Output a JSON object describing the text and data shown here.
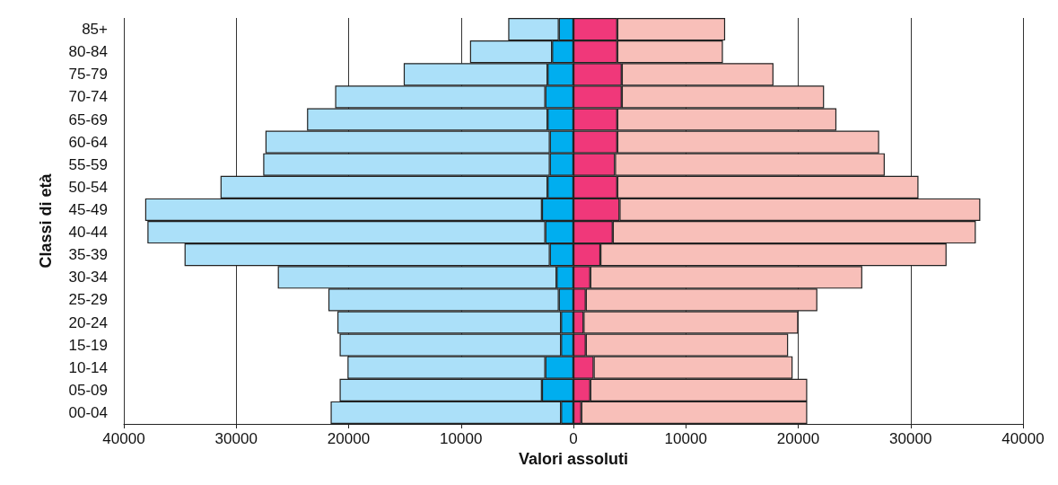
{
  "chart_data": {
    "type": "bar",
    "orientation": "horizontal",
    "stacked": true,
    "xlabel": "Valori assoluti",
    "ylabel": "Classi di età",
    "categories": [
      "85+",
      "80-84",
      "75-79",
      "70-74",
      "65-69",
      "60-64",
      "55-59",
      "50-54",
      "45-49",
      "40-44",
      "35-39",
      "30-34",
      "25-29",
      "20-24",
      "15-19",
      "10-14",
      "05-09",
      "00-04"
    ],
    "series": [
      {
        "color": "#00aeef",
        "values": [
          -1300,
          -1900,
          -2300,
          -2500,
          -2300,
          -2100,
          -2100,
          -2300,
          -2800,
          -2500,
          -2100,
          -1500,
          -1300,
          -1100,
          -1100,
          -2500,
          -2800,
          -1100
        ]
      },
      {
        "color": "#abe0f9",
        "values": [
          -4500,
          -7300,
          -12800,
          -18700,
          -21400,
          -25300,
          -25500,
          -29100,
          -35300,
          -35400,
          -32500,
          -24800,
          -20500,
          -19900,
          -19700,
          -17600,
          -18000,
          -20500
        ]
      },
      {
        "color": "#f0387a",
        "values": [
          3900,
          3900,
          4300,
          4300,
          3900,
          3900,
          3700,
          3900,
          4100,
          3500,
          2400,
          1500,
          1100,
          900,
          1100,
          1800,
          1500,
          700
        ]
      },
      {
        "color": "#f8bfb9",
        "values": [
          9600,
          9400,
          13500,
          18000,
          19500,
          23300,
          24000,
          26800,
          32100,
          32300,
          30800,
          24200,
          20600,
          19100,
          18000,
          17700,
          19300,
          20100
        ]
      }
    ],
    "xlim": [
      -40000,
      40000
    ],
    "xticks": [
      {
        "value": -40000,
        "label": "40000"
      },
      {
        "value": -30000,
        "label": "30000"
      },
      {
        "value": -20000,
        "label": "20000"
      },
      {
        "value": -10000,
        "label": "10000"
      },
      0,
      10000,
      20000,
      30000,
      40000
    ],
    "grid": "x"
  }
}
